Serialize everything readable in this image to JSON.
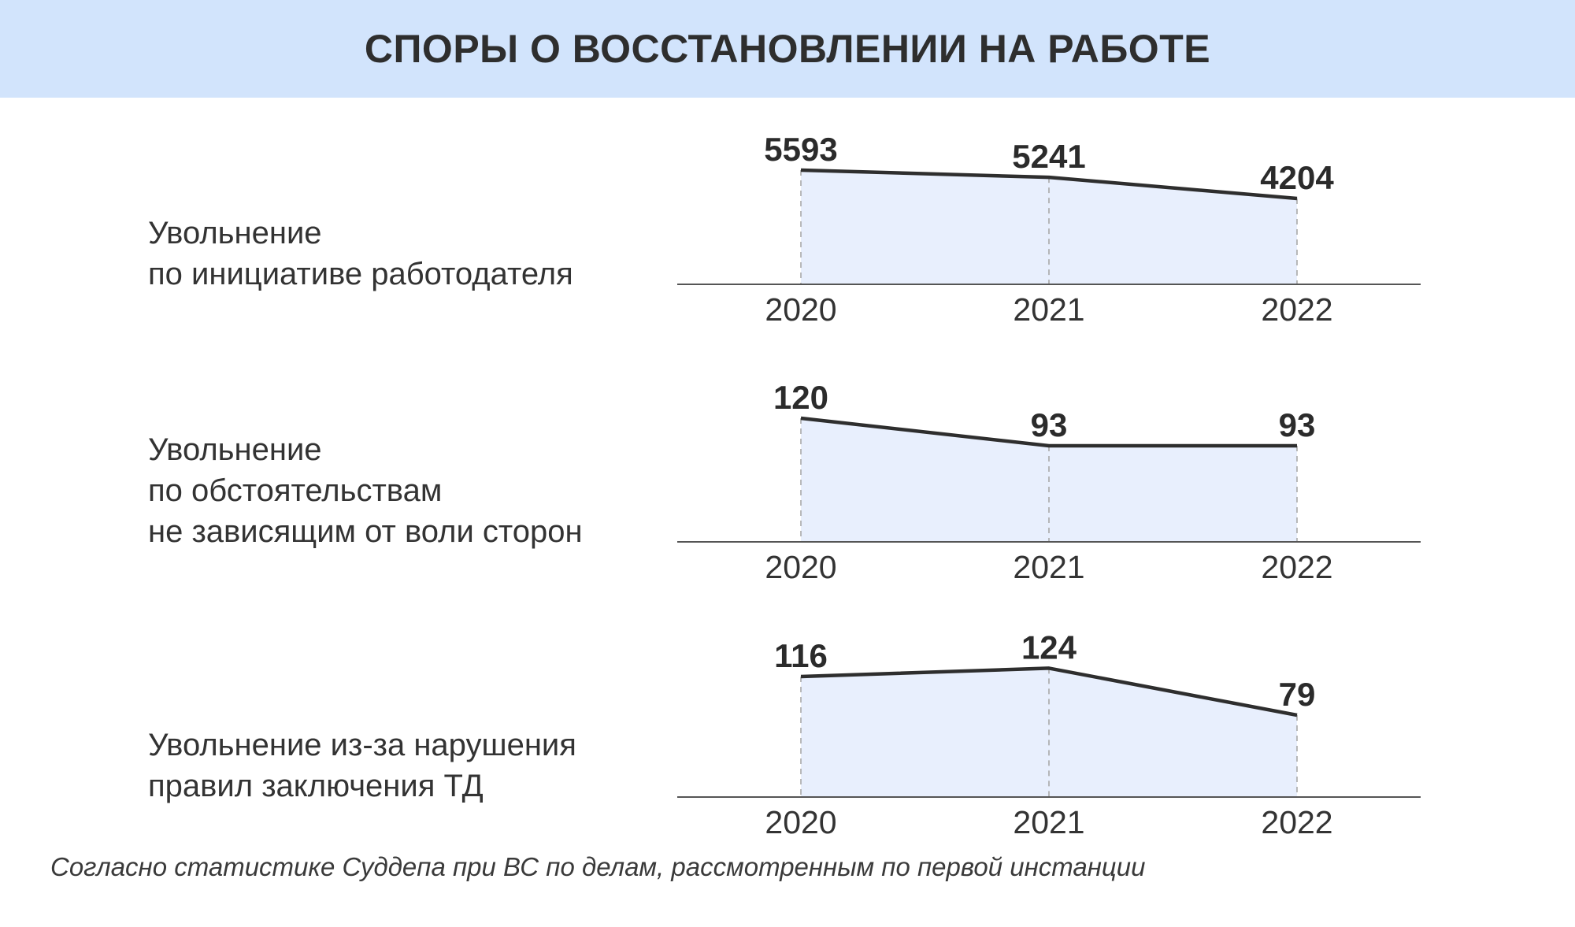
{
  "title": "СПОРЫ О ВОССТАНОВЛЕНИИ НА РАБОТЕ",
  "footnote": "Согласно статистике Суддепа при ВС по делам, рассмотренным по первой инстанции",
  "colors": {
    "header_bg": "#d2e4fc",
    "area_fill": "#e8effd",
    "line": "#2e2e2e",
    "axis": "#555555",
    "guide": "#a8a8a8"
  },
  "chart_data": [
    {
      "type": "area",
      "label_lines": [
        "Увольнение",
        "по инициативе работодателя"
      ],
      "categories": [
        "2020",
        "2021",
        "2022"
      ],
      "values": [
        5593,
        5241,
        4204
      ],
      "data_labels": [
        "5593",
        "5241",
        "4204"
      ],
      "grid": false
    },
    {
      "type": "area",
      "label_lines": [
        "Увольнение",
        "по обстоятельствам",
        "не зависящим от воли сторон"
      ],
      "categories": [
        "2020",
        "2021",
        "2022"
      ],
      "values": [
        120,
        93,
        93
      ],
      "data_labels": [
        "120",
        "93",
        "93"
      ],
      "grid": false
    },
    {
      "type": "area",
      "label_lines": [
        "Увольнение из-за нарушения",
        "правил заключения ТД"
      ],
      "categories": [
        "2020",
        "2021",
        "2022"
      ],
      "values": [
        116,
        124,
        79
      ],
      "data_labels": [
        "116",
        "124",
        "79"
      ],
      "grid": false
    }
  ]
}
